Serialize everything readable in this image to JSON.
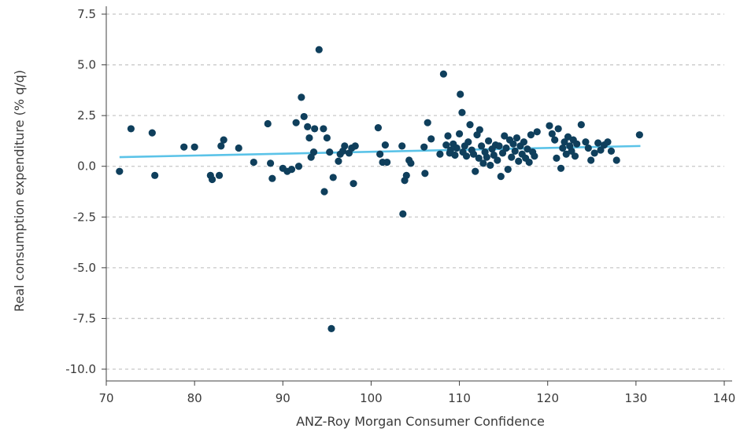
{
  "chart_data": {
    "type": "scatter",
    "title": "",
    "xlabel": "ANZ-Roy Morgan Consumer Confidence",
    "ylabel": "Real consumption expenditure (% q/q)",
    "xlim": [
      70,
      140
    ],
    "ylim": [
      -10,
      7.5
    ],
    "xticks": [
      70,
      80,
      90,
      100,
      110,
      120,
      130,
      140
    ],
    "yticks": [
      -10.0,
      -7.5,
      -5.0,
      -2.5,
      0.0,
      2.5,
      5.0,
      7.5
    ],
    "grid": "horizontal-dashed",
    "colors": {
      "points": "#0f3f5c",
      "trend": "#5bc3e8",
      "grid": "#c8c8c8",
      "axis": "#404040"
    },
    "trendline": {
      "x": [
        71.5,
        130.5
      ],
      "y": [
        0.45,
        1.0
      ]
    },
    "points": [
      {
        "x": 71.5,
        "y": -0.25
      },
      {
        "x": 72.8,
        "y": 1.85
      },
      {
        "x": 75.2,
        "y": 1.65
      },
      {
        "x": 75.5,
        "y": -0.45
      },
      {
        "x": 78.8,
        "y": 0.95
      },
      {
        "x": 80.0,
        "y": 0.95
      },
      {
        "x": 81.8,
        "y": -0.45
      },
      {
        "x": 82.0,
        "y": -0.65
      },
      {
        "x": 82.8,
        "y": -0.45
      },
      {
        "x": 83.0,
        "y": 1.0
      },
      {
        "x": 83.3,
        "y": 1.3
      },
      {
        "x": 85.0,
        "y": 0.9
      },
      {
        "x": 86.7,
        "y": 0.2
      },
      {
        "x": 88.3,
        "y": 2.1
      },
      {
        "x": 88.6,
        "y": 0.15
      },
      {
        "x": 88.8,
        "y": -0.6
      },
      {
        "x": 90.0,
        "y": -0.1
      },
      {
        "x": 90.5,
        "y": -0.25
      },
      {
        "x": 91.0,
        "y": -0.15
      },
      {
        "x": 91.5,
        "y": 2.15
      },
      {
        "x": 91.8,
        "y": 0.0
      },
      {
        "x": 92.1,
        "y": 3.4
      },
      {
        "x": 92.4,
        "y": 2.45
      },
      {
        "x": 92.8,
        "y": 1.95
      },
      {
        "x": 93.0,
        "y": 1.4
      },
      {
        "x": 93.2,
        "y": 0.45
      },
      {
        "x": 93.5,
        "y": 0.7
      },
      {
        "x": 93.6,
        "y": 1.85
      },
      {
        "x": 94.1,
        "y": 5.75
      },
      {
        "x": 94.6,
        "y": 1.85
      },
      {
        "x": 94.7,
        "y": -1.25
      },
      {
        "x": 95.0,
        "y": 1.4
      },
      {
        "x": 95.3,
        "y": 0.7
      },
      {
        "x": 95.5,
        "y": -8.0
      },
      {
        "x": 95.7,
        "y": -0.55
      },
      {
        "x": 96.3,
        "y": 0.25
      },
      {
        "x": 96.5,
        "y": 0.6
      },
      {
        "x": 96.8,
        "y": 0.75
      },
      {
        "x": 97.0,
        "y": 1.0
      },
      {
        "x": 97.5,
        "y": 0.65
      },
      {
        "x": 97.8,
        "y": 0.9
      },
      {
        "x": 98.0,
        "y": -0.85
      },
      {
        "x": 98.2,
        "y": 1.0
      },
      {
        "x": 100.8,
        "y": 1.9
      },
      {
        "x": 101.0,
        "y": 0.6
      },
      {
        "x": 101.3,
        "y": 0.2
      },
      {
        "x": 101.6,
        "y": 1.05
      },
      {
        "x": 101.8,
        "y": 0.2
      },
      {
        "x": 103.5,
        "y": 1.0
      },
      {
        "x": 103.6,
        "y": -2.35
      },
      {
        "x": 103.8,
        "y": -0.7
      },
      {
        "x": 104.0,
        "y": -0.45
      },
      {
        "x": 104.3,
        "y": 0.3
      },
      {
        "x": 104.5,
        "y": 0.15
      },
      {
        "x": 106.0,
        "y": 0.95
      },
      {
        "x": 106.1,
        "y": -0.35
      },
      {
        "x": 106.4,
        "y": 2.15
      },
      {
        "x": 106.8,
        "y": 1.35
      },
      {
        "x": 107.8,
        "y": 0.6
      },
      {
        "x": 108.2,
        "y": 4.55
      },
      {
        "x": 108.5,
        "y": 1.05
      },
      {
        "x": 108.7,
        "y": 1.5
      },
      {
        "x": 108.9,
        "y": 0.65
      },
      {
        "x": 109.0,
        "y": 0.8
      },
      {
        "x": 109.3,
        "y": 1.1
      },
      {
        "x": 109.5,
        "y": 0.55
      },
      {
        "x": 109.7,
        "y": 0.9
      },
      {
        "x": 110.0,
        "y": 1.6
      },
      {
        "x": 110.1,
        "y": 3.55
      },
      {
        "x": 110.3,
        "y": 2.65
      },
      {
        "x": 110.4,
        "y": 0.7
      },
      {
        "x": 110.6,
        "y": 1.0
      },
      {
        "x": 110.8,
        "y": 0.5
      },
      {
        "x": 111.0,
        "y": 1.2
      },
      {
        "x": 111.2,
        "y": 2.05
      },
      {
        "x": 111.4,
        "y": 0.8
      },
      {
        "x": 111.6,
        "y": 0.6
      },
      {
        "x": 111.8,
        "y": -0.25
      },
      {
        "x": 112.0,
        "y": 1.55
      },
      {
        "x": 112.2,
        "y": 0.4
      },
      {
        "x": 112.3,
        "y": 1.8
      },
      {
        "x": 112.5,
        "y": 1.0
      },
      {
        "x": 112.7,
        "y": 0.15
      },
      {
        "x": 112.9,
        "y": 0.7
      },
      {
        "x": 113.1,
        "y": 0.45
      },
      {
        "x": 113.3,
        "y": 1.25
      },
      {
        "x": 113.5,
        "y": 0.05
      },
      {
        "x": 113.7,
        "y": 0.85
      },
      {
        "x": 113.9,
        "y": 0.55
      },
      {
        "x": 114.1,
        "y": 1.05
      },
      {
        "x": 114.3,
        "y": 0.3
      },
      {
        "x": 114.5,
        "y": 1.0
      },
      {
        "x": 114.7,
        "y": -0.5
      },
      {
        "x": 114.9,
        "y": 0.65
      },
      {
        "x": 115.1,
        "y": 1.5
      },
      {
        "x": 115.3,
        "y": 0.9
      },
      {
        "x": 115.5,
        "y": -0.15
      },
      {
        "x": 115.7,
        "y": 1.3
      },
      {
        "x": 115.9,
        "y": 0.45
      },
      {
        "x": 116.1,
        "y": 1.1
      },
      {
        "x": 116.3,
        "y": 0.75
      },
      {
        "x": 116.5,
        "y": 1.4
      },
      {
        "x": 116.7,
        "y": 0.25
      },
      {
        "x": 116.9,
        "y": 1.0
      },
      {
        "x": 117.1,
        "y": 0.6
      },
      {
        "x": 117.3,
        "y": 1.2
      },
      {
        "x": 117.5,
        "y": 0.4
      },
      {
        "x": 117.7,
        "y": 0.85
      },
      {
        "x": 117.9,
        "y": 0.2
      },
      {
        "x": 118.1,
        "y": 1.55
      },
      {
        "x": 118.3,
        "y": 0.7
      },
      {
        "x": 118.5,
        "y": 0.5
      },
      {
        "x": 118.8,
        "y": 1.7
      },
      {
        "x": 120.2,
        "y": 2.0
      },
      {
        "x": 120.5,
        "y": 1.6
      },
      {
        "x": 120.8,
        "y": 1.3
      },
      {
        "x": 121.0,
        "y": 0.4
      },
      {
        "x": 121.2,
        "y": 1.85
      },
      {
        "x": 121.5,
        "y": -0.1
      },
      {
        "x": 121.7,
        "y": 0.9
      },
      {
        "x": 121.9,
        "y": 1.2
      },
      {
        "x": 122.1,
        "y": 0.6
      },
      {
        "x": 122.3,
        "y": 1.45
      },
      {
        "x": 122.5,
        "y": 1.0
      },
      {
        "x": 122.7,
        "y": 0.75
      },
      {
        "x": 122.9,
        "y": 1.3
      },
      {
        "x": 123.1,
        "y": 0.5
      },
      {
        "x": 123.3,
        "y": 1.1
      },
      {
        "x": 123.8,
        "y": 2.05
      },
      {
        "x": 124.3,
        "y": 1.2
      },
      {
        "x": 124.6,
        "y": 0.9
      },
      {
        "x": 124.9,
        "y": 0.3
      },
      {
        "x": 125.3,
        "y": 0.65
      },
      {
        "x": 125.7,
        "y": 1.15
      },
      {
        "x": 126.0,
        "y": 0.8
      },
      {
        "x": 126.4,
        "y": 1.05
      },
      {
        "x": 126.8,
        "y": 1.2
      },
      {
        "x": 127.2,
        "y": 0.75
      },
      {
        "x": 127.8,
        "y": 0.3
      },
      {
        "x": 130.4,
        "y": 1.55
      }
    ]
  }
}
